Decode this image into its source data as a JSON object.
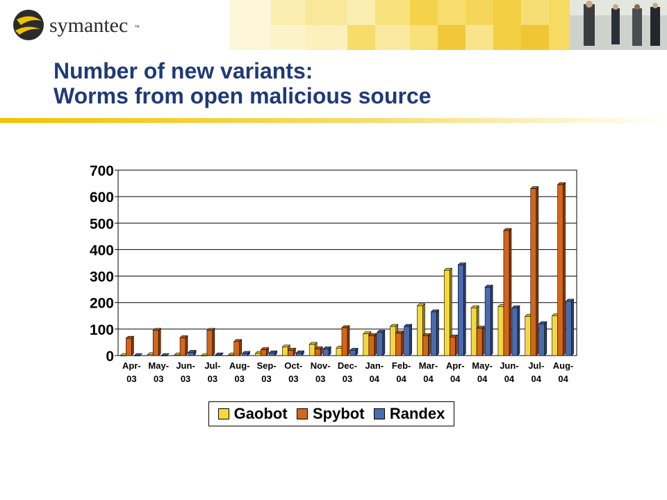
{
  "brand": {
    "logo_text": "symantec",
    "logo_mark": "™",
    "logo_icon": "symantec-globe-icon",
    "accent_color": "#f2c200",
    "photo": "business-people-walking-photo"
  },
  "slide": {
    "title_line1": "Number of new variants:",
    "title_line2": "Worms from open malicious source",
    "title_color": "#1f3a78"
  },
  "chart_data": {
    "type": "bar",
    "categories": [
      [
        "Apr-",
        "03"
      ],
      [
        "May-",
        "03"
      ],
      [
        "Jun-",
        "03"
      ],
      [
        "Jul-",
        "03"
      ],
      [
        "Aug-",
        "03"
      ],
      [
        "Sep-",
        "03"
      ],
      [
        "Oct-",
        "03"
      ],
      [
        "Nov-",
        "03"
      ],
      [
        "Dec-",
        "03"
      ],
      [
        "Jan-",
        "04"
      ],
      [
        "Feb-",
        "04"
      ],
      [
        "Mar-",
        "04"
      ],
      [
        "Apr-",
        "04"
      ],
      [
        "May-",
        "04"
      ],
      [
        "Jun-",
        "04"
      ],
      [
        "Jul-",
        "04"
      ],
      [
        "Aug-",
        "04"
      ]
    ],
    "series": [
      {
        "name": "Gaobot",
        "color": "#f5d83c",
        "values": [
          0,
          3,
          2,
          0,
          2,
          8,
          32,
          42,
          28,
          82,
          110,
          188,
          322,
          180,
          185,
          148,
          150
        ]
      },
      {
        "name": "Spybot",
        "color": "#d4661a",
        "values": [
          65,
          95,
          67,
          95,
          53,
          22,
          20,
          25,
          105,
          75,
          85,
          75,
          70,
          103,
          472,
          630,
          645
        ]
      },
      {
        "name": "Randex",
        "color": "#4a6bb0",
        "values": [
          0,
          0,
          12,
          2,
          8,
          10,
          10,
          25,
          20,
          88,
          110,
          165,
          342,
          258,
          180,
          120,
          205
        ]
      }
    ],
    "ylim": [
      0,
      700
    ],
    "yticks": [
      "0",
      "100",
      "200",
      "300",
      "400",
      "500",
      "600",
      "700"
    ],
    "grid": true,
    "legend_position": "bottom"
  }
}
